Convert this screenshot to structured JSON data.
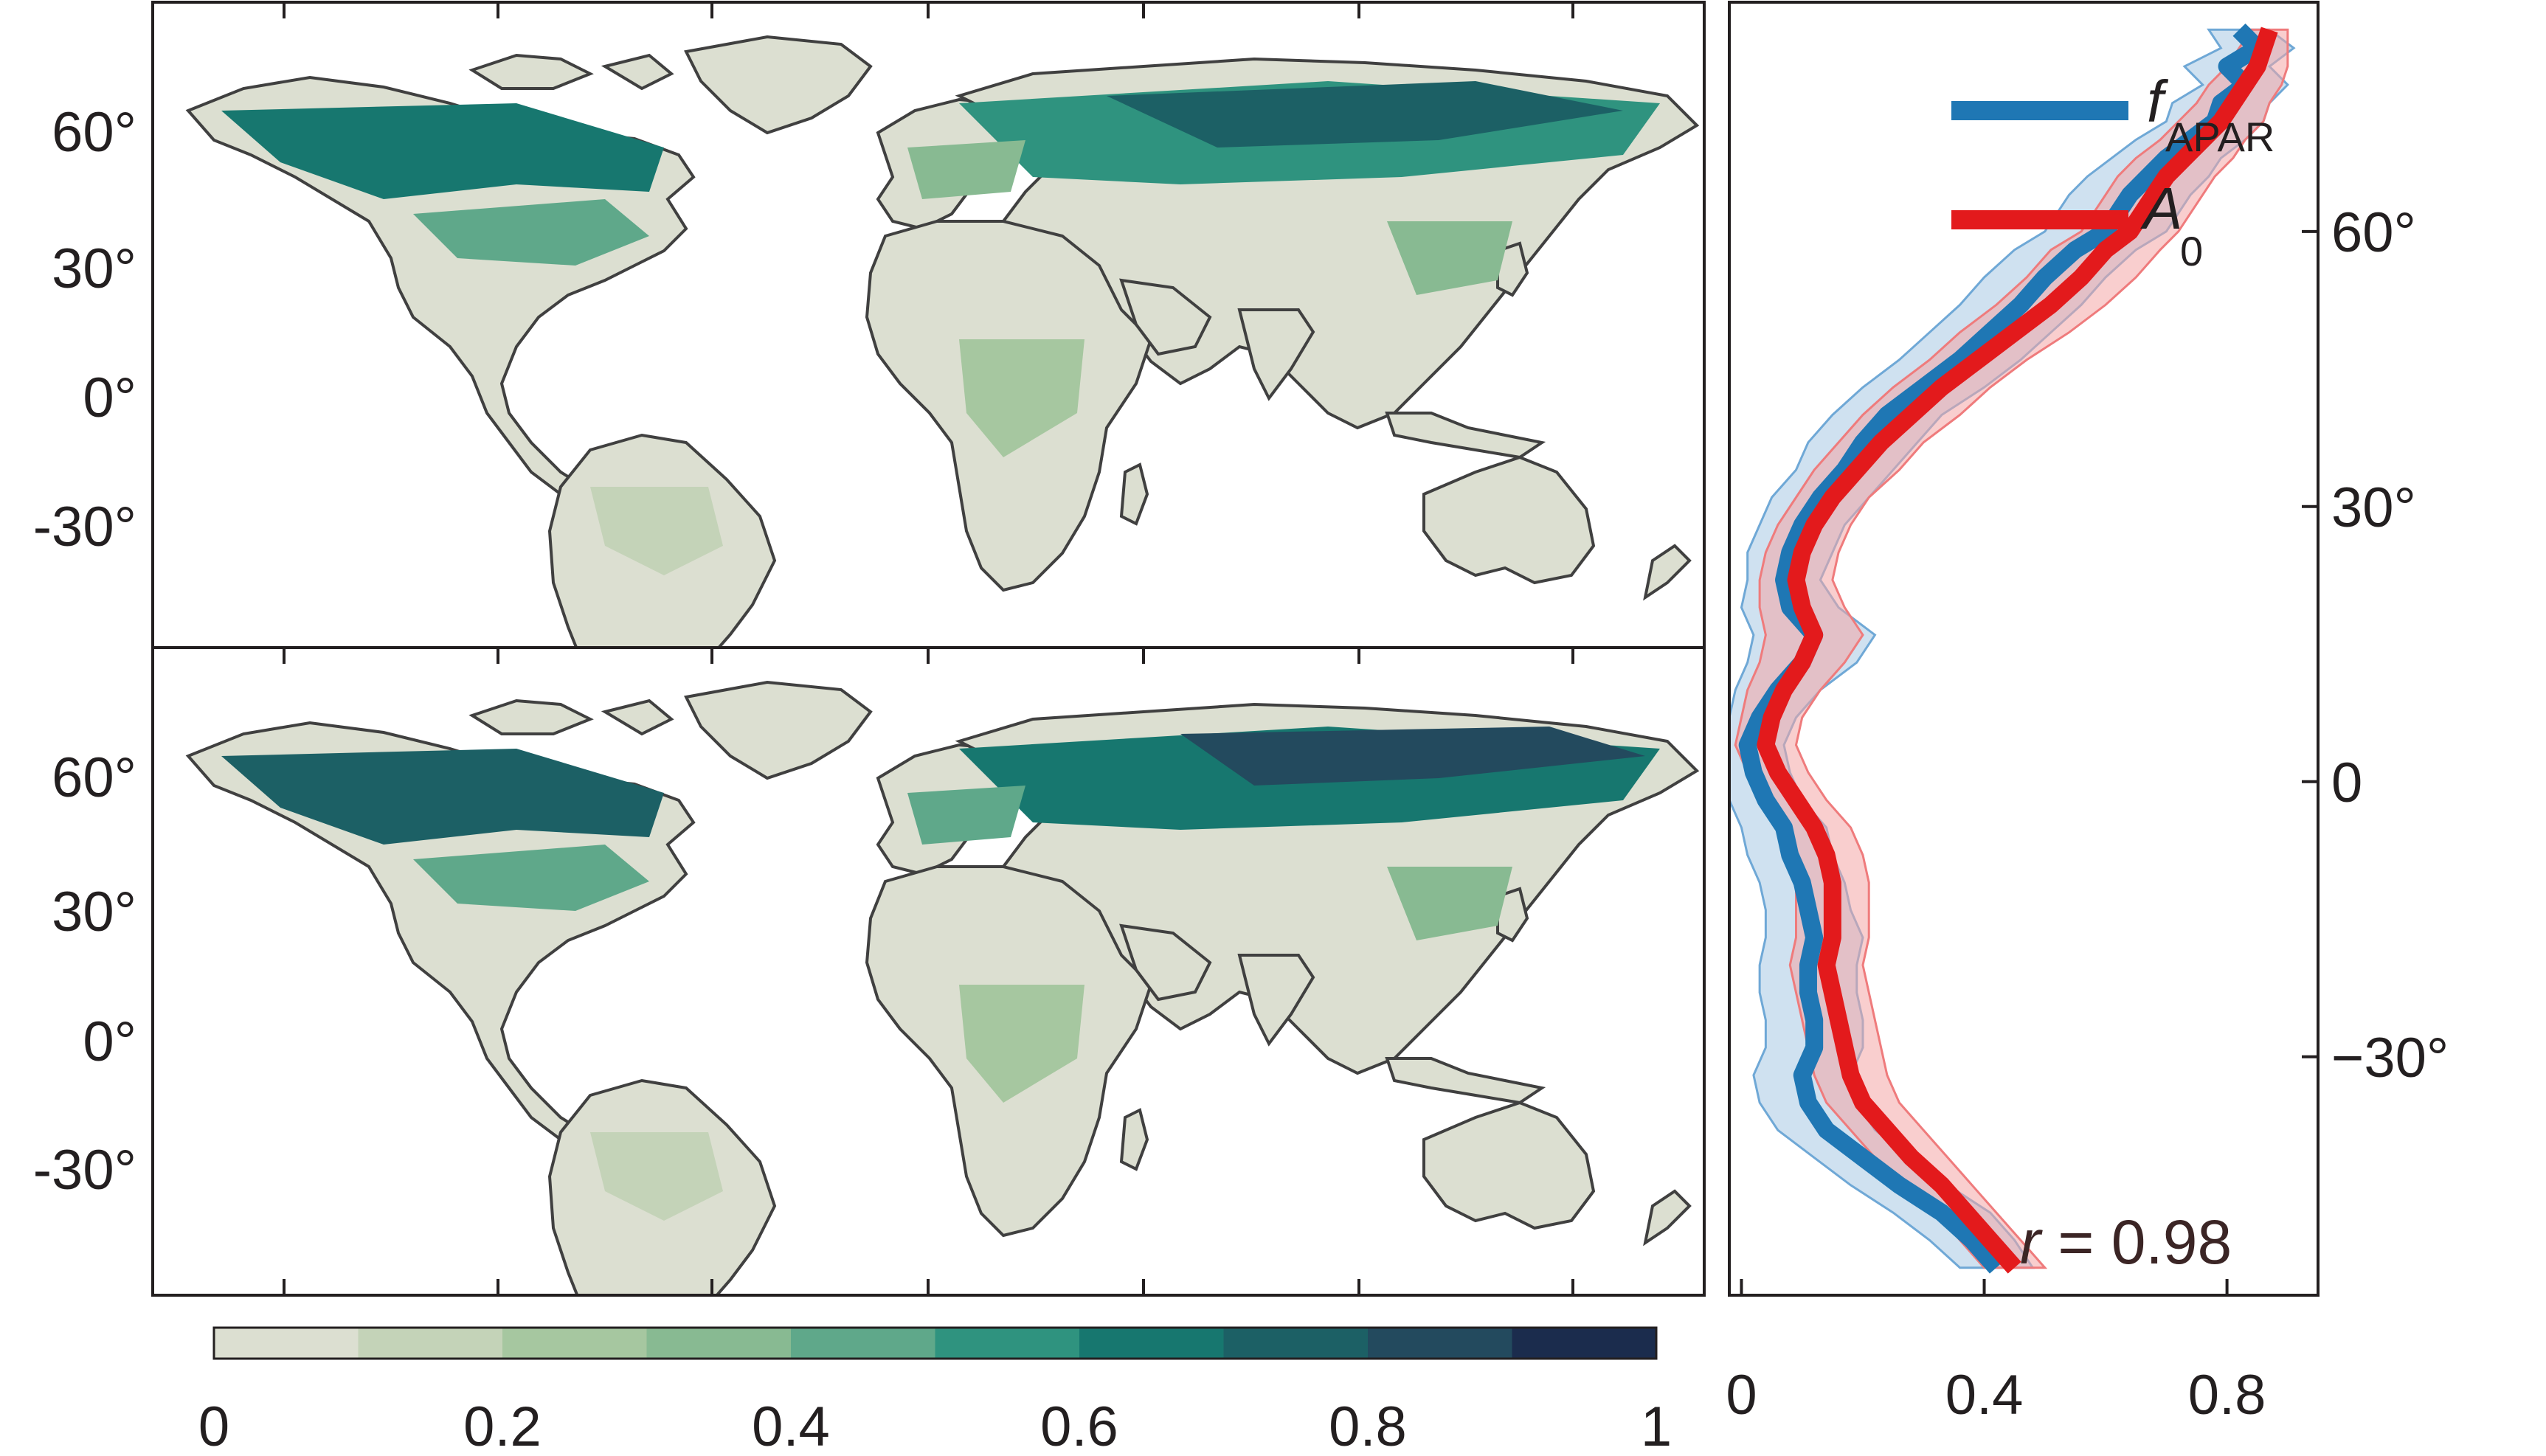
{
  "maps": {
    "top": {
      "lat_tick_labels": [
        "60°",
        "30°",
        "0°",
        "-30°"
      ],
      "lat_tick_values": [
        60,
        30,
        0,
        -30
      ]
    },
    "bottom": {
      "lat_tick_labels": [
        "60°",
        "30°",
        "0°",
        "-30°"
      ],
      "lat_tick_values": [
        60,
        30,
        0,
        -30
      ]
    },
    "colorbar": {
      "tick_labels": [
        "0",
        "0.2",
        "0.4",
        "0.6",
        "0.8",
        "1"
      ],
      "range": [
        0,
        1
      ],
      "bins": 10,
      "colors": [
        "#dcdfd1",
        "#c4d3b8",
        "#a6c7a0",
        "#88ba92",
        "#5fa88a",
        "#2f937f",
        "#17776f",
        "#1c6065",
        "#234a5e",
        "#1b2c4d"
      ]
    }
  },
  "colors": {
    "fapar": "#1f77b4",
    "fapar_band": "#a8c9e3",
    "a0": "#e31a1c",
    "a0_band": "#f4a5a6",
    "land_outline": "#404040",
    "r_text": "#3b2525"
  },
  "chart_data": {
    "type": "line",
    "orientation": "vertical-profile",
    "xlabel": "",
    "ylabel": "",
    "xlim": [
      -0.02,
      0.95
    ],
    "ylim": [
      -56,
      85
    ],
    "x_tick_labels": [
      "0",
      "0.4",
      "0.8"
    ],
    "x_tick_values": [
      0,
      0.4,
      0.8
    ],
    "y_tick_labels": [
      "60°",
      "30°",
      "0",
      "−30°"
    ],
    "y_tick_values": [
      60,
      30,
      0,
      -30
    ],
    "annotation": {
      "r_symbol": "r",
      "text": " = 0.98"
    },
    "legend": {
      "placement": "top-right"
    },
    "series": [
      {
        "name": "f_APAR",
        "label_main": "f",
        "label_sub": "APAR",
        "color": "#1f77b4",
        "lat": [
          82,
          80,
          78,
          76,
          74,
          72,
          70,
          68,
          66,
          64,
          62,
          60,
          58,
          55,
          52,
          49,
          46,
          43,
          40,
          37,
          34,
          31,
          28,
          25,
          22,
          19,
          16,
          13,
          10,
          7,
          4,
          1,
          -2,
          -5,
          -8,
          -11,
          -14,
          -17,
          -20,
          -23,
          -26,
          -29,
          -32,
          -35,
          -38,
          -41,
          -44,
          -47,
          -50,
          -53
        ],
        "value": [
          0.82,
          0.85,
          0.8,
          0.83,
          0.79,
          0.78,
          0.74,
          0.7,
          0.67,
          0.64,
          0.62,
          0.6,
          0.55,
          0.5,
          0.46,
          0.41,
          0.36,
          0.3,
          0.24,
          0.2,
          0.17,
          0.13,
          0.1,
          0.08,
          0.07,
          0.08,
          0.12,
          0.1,
          0.06,
          0.03,
          0.01,
          0.02,
          0.04,
          0.07,
          0.08,
          0.1,
          0.11,
          0.12,
          0.11,
          0.11,
          0.12,
          0.12,
          0.1,
          0.11,
          0.14,
          0.2,
          0.26,
          0.33,
          0.38,
          0.42
        ],
        "band": [
          0.05,
          0.06,
          0.07,
          0.07,
          0.08,
          0.08,
          0.09,
          0.09,
          0.1,
          0.1,
          0.1,
          0.1,
          0.1,
          0.1,
          0.1,
          0.1,
          0.1,
          0.1,
          0.09,
          0.09,
          0.08,
          0.08,
          0.07,
          0.07,
          0.06,
          0.08,
          0.1,
          0.09,
          0.07,
          0.06,
          0.06,
          0.06,
          0.06,
          0.07,
          0.07,
          0.07,
          0.07,
          0.08,
          0.08,
          0.08,
          0.08,
          0.08,
          0.08,
          0.08,
          0.08,
          0.08,
          0.08,
          0.08,
          0.07,
          0.06
        ]
      },
      {
        "name": "A_0",
        "label_main": "A",
        "label_sub": "0",
        "color": "#e31a1c",
        "lat": [
          82,
          80,
          78,
          76,
          74,
          72,
          70,
          68,
          66,
          64,
          62,
          60,
          58,
          55,
          52,
          49,
          46,
          43,
          40,
          37,
          34,
          31,
          28,
          25,
          22,
          19,
          16,
          13,
          10,
          7,
          4,
          1,
          -2,
          -5,
          -8,
          -11,
          -14,
          -17,
          -20,
          -23,
          -26,
          -29,
          -32,
          -35,
          -38,
          -41,
          -44,
          -47,
          -50,
          -53
        ],
        "value": [
          0.87,
          0.86,
          0.85,
          0.83,
          0.81,
          0.79,
          0.76,
          0.73,
          0.7,
          0.68,
          0.66,
          0.64,
          0.6,
          0.56,
          0.51,
          0.45,
          0.39,
          0.33,
          0.28,
          0.23,
          0.19,
          0.15,
          0.12,
          0.1,
          0.09,
          0.1,
          0.12,
          0.1,
          0.07,
          0.05,
          0.04,
          0.06,
          0.09,
          0.12,
          0.14,
          0.15,
          0.15,
          0.15,
          0.14,
          0.15,
          0.16,
          0.17,
          0.18,
          0.2,
          0.24,
          0.28,
          0.33,
          0.37,
          0.41,
          0.45
        ],
        "band": [
          0.03,
          0.04,
          0.05,
          0.06,
          0.06,
          0.07,
          0.07,
          0.08,
          0.08,
          0.08,
          0.08,
          0.08,
          0.09,
          0.09,
          0.09,
          0.09,
          0.08,
          0.08,
          0.08,
          0.07,
          0.07,
          0.06,
          0.06,
          0.06,
          0.06,
          0.07,
          0.08,
          0.07,
          0.06,
          0.05,
          0.05,
          0.05,
          0.05,
          0.06,
          0.06,
          0.06,
          0.06,
          0.06,
          0.06,
          0.06,
          0.06,
          0.06,
          0.06,
          0.06,
          0.06,
          0.06,
          0.05,
          0.05,
          0.05,
          0.05
        ]
      }
    ]
  }
}
